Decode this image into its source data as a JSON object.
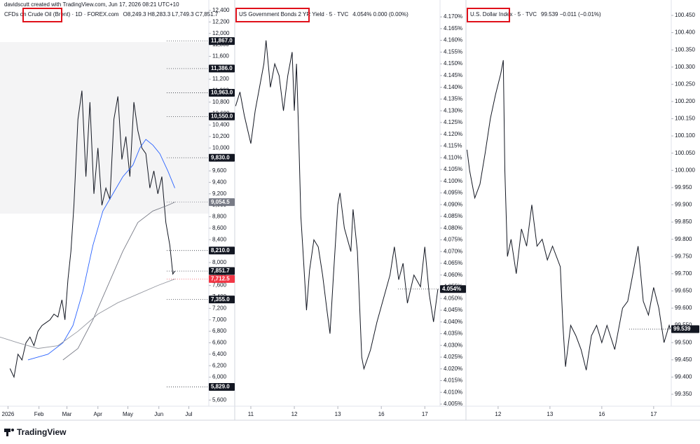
{
  "header": "davidscutt created with TradingView.com, Jun 17, 2026 08:21 UTC+10",
  "brand": "TradingView",
  "chart_data": [
    {
      "type": "line",
      "title": "CFDs on Crude Oil (Brent) · 1D · FOREX.com",
      "status": "O8,249.3 H8,283.3 L7,749.3 C7,851.7",
      "x": [
        2,
        6,
        10,
        14,
        18,
        22,
        26,
        30,
        34,
        38,
        42,
        46,
        50,
        54,
        57,
        60,
        63,
        66,
        70,
        74,
        78,
        82,
        86,
        90,
        94,
        98,
        102,
        106,
        110,
        114,
        118,
        122,
        126,
        130,
        134,
        138,
        142,
        146,
        150,
        154,
        158,
        162,
        165,
        167
      ],
      "xlim": [
        -8,
        201
      ],
      "xticks": [
        {
          "value": 0,
          "label": "2026"
        },
        {
          "value": 31,
          "label": "Feb"
        },
        {
          "value": 59,
          "label": "Mar"
        },
        {
          "value": 90,
          "label": "Apr"
        },
        {
          "value": 120,
          "label": "May"
        },
        {
          "value": 151,
          "label": "Jun"
        },
        {
          "value": 181,
          "label": "Jul"
        }
      ],
      "ylim": [
        5493,
        12583
      ],
      "yticks": [
        {
          "value": 5600,
          "label": "5,600"
        },
        {
          "value": 5800,
          "label": "5,800"
        },
        {
          "value": 6000,
          "label": "6,000"
        },
        {
          "value": 6200,
          "label": "6,200"
        },
        {
          "value": 6400,
          "label": "6,400"
        },
        {
          "value": 6600,
          "label": "6,600"
        },
        {
          "value": 6800,
          "label": "6,800"
        },
        {
          "value": 7000,
          "label": "7,000"
        },
        {
          "value": 7200,
          "label": "7,200"
        },
        {
          "value": 7400,
          "label": "7,400"
        },
        {
          "value": 7600,
          "label": "7,600"
        },
        {
          "value": 7800,
          "label": "7,800"
        },
        {
          "value": 8000,
          "label": "8,000"
        },
        {
          "value": 8200,
          "label": "8,200"
        },
        {
          "value": 8400,
          "label": "8,400"
        },
        {
          "value": 8600,
          "label": "8,600"
        },
        {
          "value": 8800,
          "label": "8,800"
        },
        {
          "value": 9000,
          "label": "9,000"
        },
        {
          "value": 9200,
          "label": "9,200"
        },
        {
          "value": 9400,
          "label": "9,400"
        },
        {
          "value": 9600,
          "label": "9,600"
        },
        {
          "value": 9800,
          "label": "9,800"
        },
        {
          "value": 10000,
          "label": "10,000"
        },
        {
          "value": 10200,
          "label": "10,200"
        },
        {
          "value": 10400,
          "label": "10,400"
        },
        {
          "value": 10600,
          "label": "10,600"
        },
        {
          "value": 10800,
          "label": "10,800"
        },
        {
          "value": 11000,
          "label": "11,000"
        },
        {
          "value": 11200,
          "label": "11,200"
        },
        {
          "value": 11400,
          "label": "11,400"
        },
        {
          "value": 11600,
          "label": "11,600"
        },
        {
          "value": 11800,
          "label": "11,800"
        },
        {
          "value": 12000,
          "label": "12,000"
        },
        {
          "value": 12200,
          "label": "12,200"
        },
        {
          "value": 12400,
          "label": "12,400"
        }
      ],
      "series": [
        {
          "color": "#131722",
          "values": [
            6150,
            6000,
            6400,
            6300,
            6600,
            6700,
            6550,
            6800,
            6900,
            6950,
            7000,
            7100,
            7050,
            7350,
            7000,
            7700,
            8200,
            9000,
            10500,
            11000,
            9500,
            10800,
            9200,
            10000,
            9000,
            9300,
            9100,
            10500,
            10900,
            9800,
            10200,
            9500,
            10800,
            10300,
            10000,
            9900,
            9300,
            9600,
            9200,
            9500,
            8700,
            8300,
            7800,
            7851.7
          ]
        },
        {
          "color": "#2962ff",
          "x": [
            20,
            40,
            55,
            65,
            75,
            85,
            95,
            105,
            115,
            125,
            132,
            138,
            145,
            152,
            160,
            167
          ],
          "values": [
            6300,
            6400,
            6600,
            6900,
            7500,
            8300,
            8900,
            9200,
            9500,
            9700,
            10000,
            10150,
            10050,
            9900,
            9600,
            9300
          ]
        },
        {
          "color": "#787b86",
          "x": [
            55,
            70,
            85,
            100,
            115,
            130,
            145,
            160,
            167
          ],
          "values": [
            6300,
            6500,
            7000,
            7600,
            8200,
            8700,
            8900,
            9000,
            9054.5
          ]
        },
        {
          "color": "#9598a1",
          "x": [
            -8,
            10,
            30,
            50,
            70,
            90,
            110,
            130,
            150,
            167
          ],
          "values": [
            6700,
            6600,
            6500,
            6550,
            6800,
            7100,
            7300,
            7450,
            7600,
            7712.5
          ]
        }
      ],
      "price_labels": [
        {
          "value": 11867,
          "label": "11,867.0",
          "color": "#131722"
        },
        {
          "value": 11386,
          "label": "11,386.0",
          "color": "#131722"
        },
        {
          "value": 10963,
          "label": "10,963.0",
          "color": "#131722"
        },
        {
          "value": 10550,
          "label": "10,550.0",
          "color": "#131722"
        },
        {
          "value": 9830,
          "label": "9,830.0",
          "color": "#131722"
        },
        {
          "value": 9054.5,
          "label": "9,054.5",
          "color": "#787b86"
        },
        {
          "value": 8210,
          "label": "8,210.0",
          "color": "#131722"
        },
        {
          "value": 7851.7,
          "label": "7,851.7",
          "color": "#131722"
        },
        {
          "value": 7712.5,
          "label": "7,712.5",
          "color": "#f23645"
        },
        {
          "value": 7355,
          "label": "7,355.0",
          "color": "#131722"
        },
        {
          "value": 5829,
          "label": "5,829.0",
          "color": "#131722"
        }
      ]
    },
    {
      "type": "line",
      "title": "US Government Bonds 2 YR Yield · 5 · TVC",
      "status": "4.054% 0.000 (0.00%)",
      "x": [
        -0.35,
        -0.25,
        -0.15,
        -0.05,
        0,
        0.1,
        0.2,
        0.3,
        0.35,
        0.45,
        0.55,
        0.65,
        0.75,
        0.85,
        0.95,
        1,
        1.05,
        1.1,
        1.15,
        1.2,
        1.28,
        1.35,
        1.45,
        1.55,
        1.65,
        1.75,
        1.82,
        1.9,
        2,
        2.05,
        2.15,
        2.3,
        2.35,
        2.45,
        2.55,
        2.6,
        2.75,
        2.9,
        3.05,
        3.2,
        3.3,
        3.4,
        3.5,
        3.6,
        3.75,
        3.9,
        4,
        4.1,
        4.2,
        4.3
      ],
      "xlim": [
        -0.37,
        4.35
      ],
      "xticks": [
        {
          "value": 0,
          "label": "11"
        },
        {
          "value": 1,
          "label": "12"
        },
        {
          "value": 2,
          "label": "13"
        },
        {
          "value": 3,
          "label": "16"
        },
        {
          "value": 4,
          "label": "17"
        }
      ],
      "ylim": [
        4.0041,
        4.1772
      ],
      "yticks": [
        {
          "value": 4.005,
          "label": "4.005%"
        },
        {
          "value": 4.01,
          "label": "4.010%"
        },
        {
          "value": 4.015,
          "label": "4.015%"
        },
        {
          "value": 4.02,
          "label": "4.020%"
        },
        {
          "value": 4.025,
          "label": "4.025%"
        },
        {
          "value": 4.03,
          "label": "4.030%"
        },
        {
          "value": 4.035,
          "label": "4.035%"
        },
        {
          "value": 4.04,
          "label": "4.040%"
        },
        {
          "value": 4.045,
          "label": "4.045%"
        },
        {
          "value": 4.05,
          "label": "4.050%"
        },
        {
          "value": 4.055,
          "label": "4.055%"
        },
        {
          "value": 4.06,
          "label": "4.060%"
        },
        {
          "value": 4.065,
          "label": "4.065%"
        },
        {
          "value": 4.07,
          "label": "4.070%"
        },
        {
          "value": 4.075,
          "label": "4.075%"
        },
        {
          "value": 4.08,
          "label": "4.080%"
        },
        {
          "value": 4.085,
          "label": "4.085%"
        },
        {
          "value": 4.09,
          "label": "4.090%"
        },
        {
          "value": 4.095,
          "label": "4.095%"
        },
        {
          "value": 4.1,
          "label": "4.100%"
        },
        {
          "value": 4.105,
          "label": "4.105%"
        },
        {
          "value": 4.11,
          "label": "4.110%"
        },
        {
          "value": 4.115,
          "label": "4.115%"
        },
        {
          "value": 4.12,
          "label": "4.120%"
        },
        {
          "value": 4.125,
          "label": "4.125%"
        },
        {
          "value": 4.13,
          "label": "4.130%"
        },
        {
          "value": 4.135,
          "label": "4.135%"
        },
        {
          "value": 4.14,
          "label": "4.140%"
        },
        {
          "value": 4.145,
          "label": "4.145%"
        },
        {
          "value": 4.15,
          "label": "4.150%"
        },
        {
          "value": 4.155,
          "label": "4.155%"
        },
        {
          "value": 4.16,
          "label": "4.160%"
        },
        {
          "value": 4.165,
          "label": "4.165%"
        },
        {
          "value": 4.17,
          "label": "4.170%"
        }
      ],
      "series": [
        {
          "color": "#131722",
          "values": [
            4.132,
            4.138,
            4.128,
            4.12,
            4.116,
            4.13,
            4.14,
            4.15,
            4.16,
            4.14,
            4.15,
            4.145,
            4.13,
            4.145,
            4.155,
            4.13,
            4.15,
            4.12,
            4.085,
            4.07,
            4.045,
            4.062,
            4.075,
            4.072,
            4.06,
            4.045,
            4.035,
            4.06,
            4.09,
            4.095,
            4.08,
            4.07,
            4.088,
            4.07,
            4.025,
            4.02,
            4.028,
            4.04,
            4.05,
            4.06,
            4.072,
            4.058,
            4.065,
            4.048,
            4.06,
            4.055,
            4.072,
            4.052,
            4.04,
            4.054
          ]
        }
      ],
      "price_labels": [
        {
          "value": 4.054,
          "label": "4.054%",
          "color": "#131722"
        }
      ]
    },
    {
      "type": "line",
      "title": "U.S. Dollar Index · 5 · TVC",
      "status": "99.539 −0.011 (−0.01%)",
      "x": [
        -0.6,
        -0.55,
        -0.45,
        -0.35,
        -0.25,
        -0.15,
        -0.05,
        0.05,
        0.1,
        0.13,
        0.18,
        0.25,
        0.35,
        0.45,
        0.55,
        0.65,
        0.75,
        0.85,
        0.95,
        1.05,
        1.2,
        1.25,
        1.3,
        1.4,
        1.5,
        1.6,
        1.7,
        1.8,
        1.9,
        2,
        2.1,
        2.25,
        2.4,
        2.5,
        2.6,
        2.7,
        2.8,
        2.9,
        3,
        3.1,
        3.2,
        3.3,
        3.32
      ],
      "xlim": [
        -0.62,
        3.34
      ],
      "xticks": [
        {
          "value": 0,
          "label": "12"
        },
        {
          "value": 1,
          "label": "13"
        },
        {
          "value": 2,
          "label": "16"
        },
        {
          "value": 3,
          "label": "17"
        }
      ],
      "ylim": [
        99.3154,
        100.4947
      ],
      "yticks": [
        {
          "value": 99.35,
          "label": "99.350"
        },
        {
          "value": 99.4,
          "label": "99.400"
        },
        {
          "value": 99.45,
          "label": "99.450"
        },
        {
          "value": 99.5,
          "label": "99.500"
        },
        {
          "value": 99.55,
          "label": "99.550"
        },
        {
          "value": 99.6,
          "label": "99.600"
        },
        {
          "value": 99.65,
          "label": "99.650"
        },
        {
          "value": 99.7,
          "label": "99.700"
        },
        {
          "value": 99.75,
          "label": "99.750"
        },
        {
          "value": 99.8,
          "label": "99.800"
        },
        {
          "value": 99.85,
          "label": "99.850"
        },
        {
          "value": 99.9,
          "label": "99.900"
        },
        {
          "value": 99.95,
          "label": "99.950"
        },
        {
          "value": 100,
          "label": "100.000"
        },
        {
          "value": 100.05,
          "label": "100.050"
        },
        {
          "value": 100.1,
          "label": "100.100"
        },
        {
          "value": 100.15,
          "label": "100.150"
        },
        {
          "value": 100.2,
          "label": "100.200"
        },
        {
          "value": 100.25,
          "label": "100.250"
        },
        {
          "value": 100.3,
          "label": "100.300"
        },
        {
          "value": 100.35,
          "label": "100.350"
        },
        {
          "value": 100.4,
          "label": "100.400"
        },
        {
          "value": 100.45,
          "label": "100.450"
        }
      ],
      "series": [
        {
          "color": "#131722",
          "values": [
            100.06,
            100,
            99.92,
            99.96,
            100.05,
            100.15,
            100.22,
            100.28,
            100.32,
            100,
            99.75,
            99.8,
            99.7,
            99.83,
            99.78,
            99.9,
            99.78,
            99.8,
            99.74,
            99.78,
            99.72,
            99.55,
            99.43,
            99.55,
            99.52,
            99.48,
            99.42,
            99.52,
            99.55,
            99.5,
            99.55,
            99.48,
            99.6,
            99.62,
            99.7,
            99.78,
            99.62,
            99.58,
            99.66,
            99.6,
            99.5,
            99.55,
            99.539
          ]
        }
      ],
      "price_labels": [
        {
          "value": 99.539,
          "label": "99.539",
          "color": "#131722"
        }
      ]
    }
  ]
}
